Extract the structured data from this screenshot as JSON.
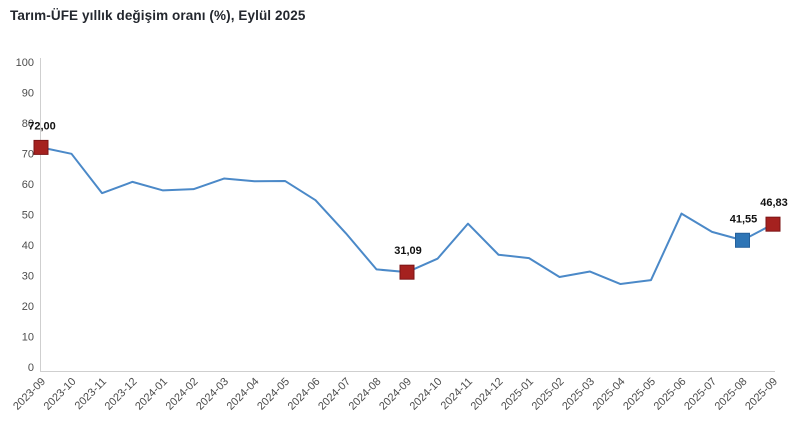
{
  "title": "Tarım-ÜFE yıllık değişim oranı (%), Eylül 2025",
  "colors": {
    "line": "#4b89c8",
    "marker_red_fill": "#a5211f",
    "marker_red_border": "#7c1416",
    "marker_blue_fill": "#2e75b6",
    "marker_blue_border": "#24609b",
    "axis_line": "#cfcfcf",
    "tick_text": "#4d4d4d",
    "data_label_text": "#111111",
    "title_text": "#23272e",
    "background": "#ffffff"
  },
  "chart_data": {
    "type": "line",
    "title": "Tarım-ÜFE yıllık değişim oranı (%), Eylül 2025",
    "xlabel": "",
    "ylabel": "",
    "ylim": [
      0,
      100
    ],
    "ytick_step": 10,
    "yticks": [
      "0",
      "10",
      "20",
      "30",
      "40",
      "50",
      "60",
      "70",
      "80",
      "90",
      "100"
    ],
    "grid": false,
    "legend": "none",
    "x": [
      "2023-09",
      "2023-10",
      "2023-11",
      "2023-12",
      "2024-01",
      "2024-02",
      "2024-03",
      "2024-04",
      "2024-05",
      "2024-06",
      "2024-07",
      "2024-08",
      "2024-09",
      "2024-10",
      "2024-11",
      "2024-12",
      "2025-01",
      "2025-02",
      "2025-03",
      "2025-04",
      "2025-05",
      "2025-06",
      "2025-07",
      "2025-08",
      "2025-09"
    ],
    "series": [
      {
        "name": "Tarım-ÜFE yıllık değişim oranı (%)",
        "values": [
          72.0,
          69.9,
          57.0,
          60.7,
          57.9,
          58.3,
          61.8,
          60.9,
          61.0,
          54.7,
          43.8,
          32.0,
          31.09,
          35.5,
          47.0,
          36.8,
          35.7,
          29.5,
          31.3,
          27.2,
          28.5,
          50.3,
          44.3,
          41.55,
          46.83
        ]
      }
    ],
    "annotations": [
      {
        "x": "2023-09",
        "label": "72,00",
        "marker": "red-square"
      },
      {
        "x": "2024-09",
        "label": "31,09",
        "marker": "red-square"
      },
      {
        "x": "2025-08",
        "label": "41,55",
        "marker": "blue-square"
      },
      {
        "x": "2025-09",
        "label": "46,83",
        "marker": "red-square"
      }
    ]
  }
}
